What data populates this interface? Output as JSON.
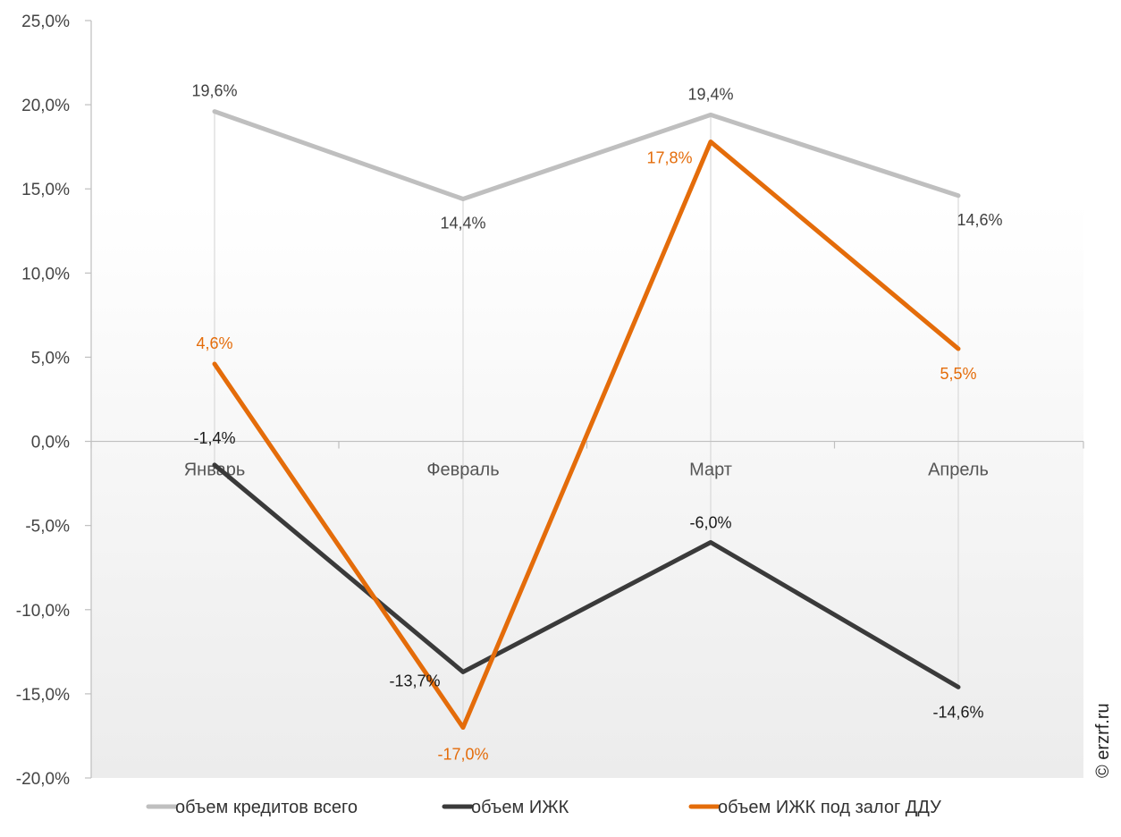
{
  "chart_data": {
    "type": "line",
    "categories": [
      "Январь",
      "Февраль",
      "Март",
      "Апрель"
    ],
    "series": [
      {
        "name": "объем кредитов всего",
        "values": [
          19.6,
          14.4,
          19.4,
          14.6
        ],
        "labels": [
          "19,6%",
          "14,4%",
          "19,4%",
          "14,6%"
        ],
        "color": "#BFBFBF",
        "label_color": "#404040"
      },
      {
        "name": "объем ИЖК",
        "values": [
          -1.4,
          -13.7,
          -6.0,
          -14.6
        ],
        "labels": [
          "-1,4%",
          "-13,7%",
          "-6,0%",
          "-14,6%"
        ],
        "color": "#3A3A3A",
        "label_color": "#1A1A1A"
      },
      {
        "name": "объем ИЖК под залог ДДУ",
        "values": [
          4.6,
          -17.0,
          17.8,
          5.5
        ],
        "labels": [
          "4,6%",
          "-17,0%",
          "17,8%",
          "5,5%"
        ],
        "color": "#E46C0A",
        "label_color": "#E46C0A"
      }
    ],
    "ylim": [
      -20,
      25
    ],
    "yticks": [
      25,
      20,
      15,
      10,
      5,
      0,
      -5,
      -10,
      -15,
      -20
    ],
    "ytick_labels": [
      "25,0%",
      "20,0%",
      "15,0%",
      "10,0%",
      "5,0%",
      "0,0%",
      "-5,0%",
      "-10,0%",
      "-15,0%",
      "-20,0%"
    ],
    "title": "",
    "xlabel": "",
    "ylabel": "",
    "grid": "vertical drop lines at categories",
    "legend_position": "bottom",
    "background": "gradient white to light grey"
  },
  "credit": "© erzrf.ru"
}
